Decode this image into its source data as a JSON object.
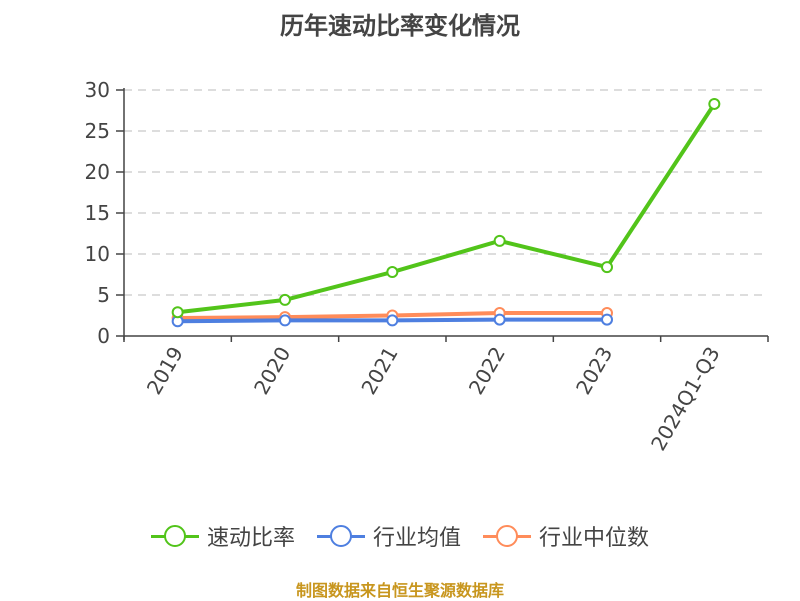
{
  "title": "历年速动比率变化情况",
  "source": "制图数据来自恒生聚源数据库",
  "colors": {
    "quick_ratio": "#52c41a",
    "industry_avg": "#4e7fe0",
    "industry_median": "#ff8c5a",
    "grid": "#dddddd",
    "axis": "#444444",
    "source": "#c8961e"
  },
  "legend": [
    {
      "label": "速动比率",
      "color": "#52c41a"
    },
    {
      "label": "行业均值",
      "color": "#4e7fe0"
    },
    {
      "label": "行业中位数",
      "color": "#ff8c5a"
    }
  ],
  "chart_data": {
    "type": "line",
    "title": "历年速动比率变化情况",
    "xlabel": "",
    "ylabel": "",
    "categories": [
      "2019",
      "2020",
      "2021",
      "2022",
      "2023",
      "2024Q1-Q3"
    ],
    "series": [
      {
        "name": "速动比率",
        "color": "#52c41a",
        "values": [
          2.9,
          4.4,
          7.8,
          11.6,
          8.4,
          28.3
        ]
      },
      {
        "name": "行业均值",
        "color": "#4e7fe0",
        "values": [
          1.8,
          1.9,
          1.9,
          2.0,
          2.0,
          null
        ]
      },
      {
        "name": "行业中位数",
        "color": "#ff8c5a",
        "values": [
          2.2,
          2.3,
          2.5,
          2.8,
          2.8,
          null
        ]
      }
    ],
    "yticks": [
      0,
      5,
      10,
      15,
      20,
      25,
      30
    ],
    "ylim": [
      0,
      30
    ],
    "grid": true,
    "legend_position": "bottom"
  }
}
